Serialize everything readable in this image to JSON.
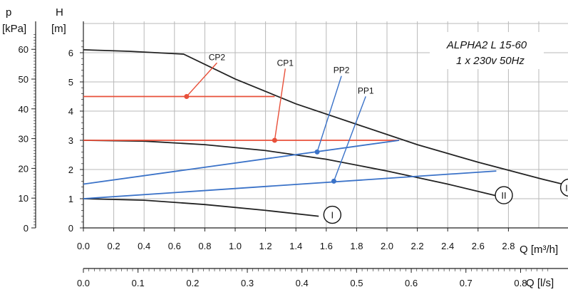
{
  "chart_data": {
    "type": "line",
    "title": "ALPHA2 L 15-60",
    "subtitle": "1 x 230v 50Hz",
    "y_left_label_top": "p",
    "y_left_label_unit": "[kPa]",
    "y_right_label_top": "H",
    "y_right_label_unit": "[m]",
    "xlabel": "Q [m³/h]",
    "x2label": "Q [l/s]",
    "xlim": [
      0,
      3.0
    ],
    "ylim": [
      0,
      6.5
    ],
    "x_ticks": [
      "0.0",
      "0.2",
      "0.4",
      "0.6",
      "0.8",
      "1.0",
      "1.2",
      "1.4",
      "1.6",
      "1.8",
      "2.0",
      "2.2",
      "2.4",
      "2.6",
      "2.8"
    ],
    "x2_ticks": [
      "0.0",
      "0.1",
      "0.2",
      "0.3",
      "0.4",
      "0.5",
      "0.6",
      "0.7",
      "0.8"
    ],
    "h_ticks": [
      "0",
      "1",
      "2",
      "3",
      "4",
      "5",
      "6"
    ],
    "p_ticks": [
      "0",
      "10",
      "20",
      "30",
      "40",
      "50",
      "60"
    ],
    "grid": true,
    "colors": {
      "curve": "#222222",
      "cp": "#e8503a",
      "pp": "#3a72c8",
      "grid": "#b8b8b8"
    },
    "speed_curves": [
      {
        "name": "I",
        "x": [
          0.0,
          0.4,
          0.8,
          1.2,
          1.55
        ],
        "y": [
          1.0,
          0.95,
          0.8,
          0.6,
          0.4
        ]
      },
      {
        "name": "II",
        "x": [
          0.0,
          0.4,
          0.8,
          1.2,
          1.6,
          2.0,
          2.4,
          2.72
        ],
        "y": [
          3.0,
          2.97,
          2.85,
          2.65,
          2.35,
          1.95,
          1.5,
          1.1
        ]
      },
      {
        "name": "III",
        "x": [
          0.0,
          0.3,
          0.66,
          1.0,
          1.4,
          1.8,
          2.2,
          2.6,
          3.0,
          3.25
        ],
        "y": [
          6.1,
          6.05,
          5.95,
          5.1,
          4.25,
          3.55,
          2.85,
          2.25,
          1.7,
          1.38
        ]
      }
    ],
    "cp_lines": [
      {
        "name": "CP2",
        "x": [
          0.0,
          1.26
        ],
        "y": [
          4.5,
          4.5
        ]
      },
      {
        "name": "CP1",
        "x": [
          0.0,
          2.08
        ],
        "y": [
          3.0,
          3.0
        ]
      }
    ],
    "pp_lines": [
      {
        "name": "PP2",
        "x": [
          0.0,
          2.08
        ],
        "y": [
          1.5,
          3.0
        ]
      },
      {
        "name": "PP1",
        "x": [
          0.0,
          2.72
        ],
        "y": [
          1.0,
          1.95
        ]
      }
    ],
    "annotations": [
      {
        "text": "CP2",
        "color": "cp",
        "point": [
          0.68,
          4.5
        ],
        "label_at": [
          0.88,
          5.75
        ]
      },
      {
        "text": "CP1",
        "color": "cp",
        "point": [
          1.26,
          3.0
        ],
        "label_at": [
          1.33,
          5.55
        ]
      },
      {
        "text": "PP2",
        "color": "pp",
        "point": [
          1.54,
          2.6
        ],
        "label_at": [
          1.7,
          5.3
        ]
      },
      {
        "text": "PP1",
        "color": "pp",
        "point": [
          1.65,
          1.6
        ],
        "label_at": [
          1.86,
          4.6
        ]
      }
    ],
    "curve_labels": [
      {
        "text": "I",
        "at": [
          1.64,
          0.45
        ]
      },
      {
        "text": "II",
        "at": [
          2.77,
          1.12
        ]
      },
      {
        "text": "III",
        "at": [
          3.2,
          1.38
        ]
      }
    ]
  }
}
